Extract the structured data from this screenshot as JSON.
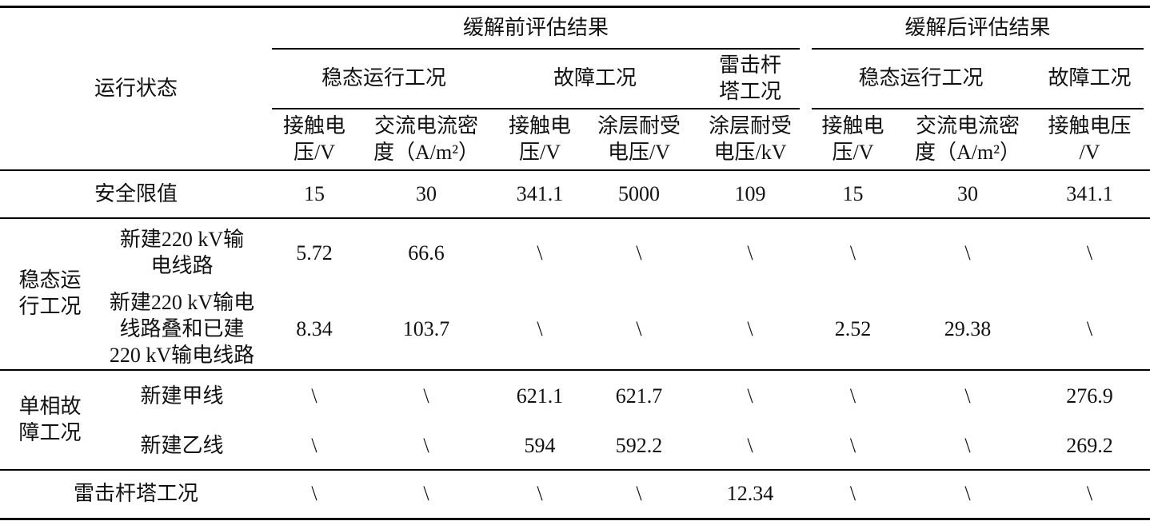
{
  "table": {
    "header": {
      "stub": "运行状态",
      "groups": [
        "缓解前评估结果",
        "缓解后评估结果"
      ],
      "conditions": [
        "稳态运行工况",
        "故障工况",
        "雷击杆\n塔工况",
        "稳态运行工况",
        "故障工况"
      ],
      "columns": [
        "接触电\n压/V",
        "交流电流密\n度（A/m²）",
        "接触电\n压/V",
        "涂层耐受\n电压/V",
        "涂层耐受\n电压/kV",
        "接触电\n压/V",
        "交流电流密\n度（A/m²）",
        "接触电压\n/V"
      ]
    },
    "row_groups": [
      "稳态运\n行工况",
      "单相故\n障工况"
    ],
    "rows": [
      {
        "label": "安全限值",
        "values": [
          "15",
          "30",
          "341.1",
          "5000",
          "109",
          "15",
          "30",
          "341.1"
        ]
      },
      {
        "label": "新建220 kV输\n电线路",
        "values": [
          "5.72",
          "66.6",
          "\\",
          "\\",
          "\\",
          "\\",
          "\\",
          "\\"
        ]
      },
      {
        "label": "新建220 kV输电\n线路叠和已建\n220 kV输电线路",
        "values": [
          "8.34",
          "103.7",
          "\\",
          "\\",
          "\\",
          "2.52",
          "29.38",
          "\\"
        ]
      },
      {
        "label": "新建甲线",
        "values": [
          "\\",
          "\\",
          "621.1",
          "621.7",
          "\\",
          "\\",
          "\\",
          "276.9"
        ]
      },
      {
        "label": "新建乙线",
        "values": [
          "\\",
          "\\",
          "594",
          "592.2",
          "\\",
          "\\",
          "\\",
          "269.2"
        ]
      },
      {
        "label": "雷击杆塔工况",
        "values": [
          "\\",
          "\\",
          "\\",
          "\\",
          "12.34",
          "\\",
          "\\",
          "\\"
        ]
      }
    ]
  }
}
